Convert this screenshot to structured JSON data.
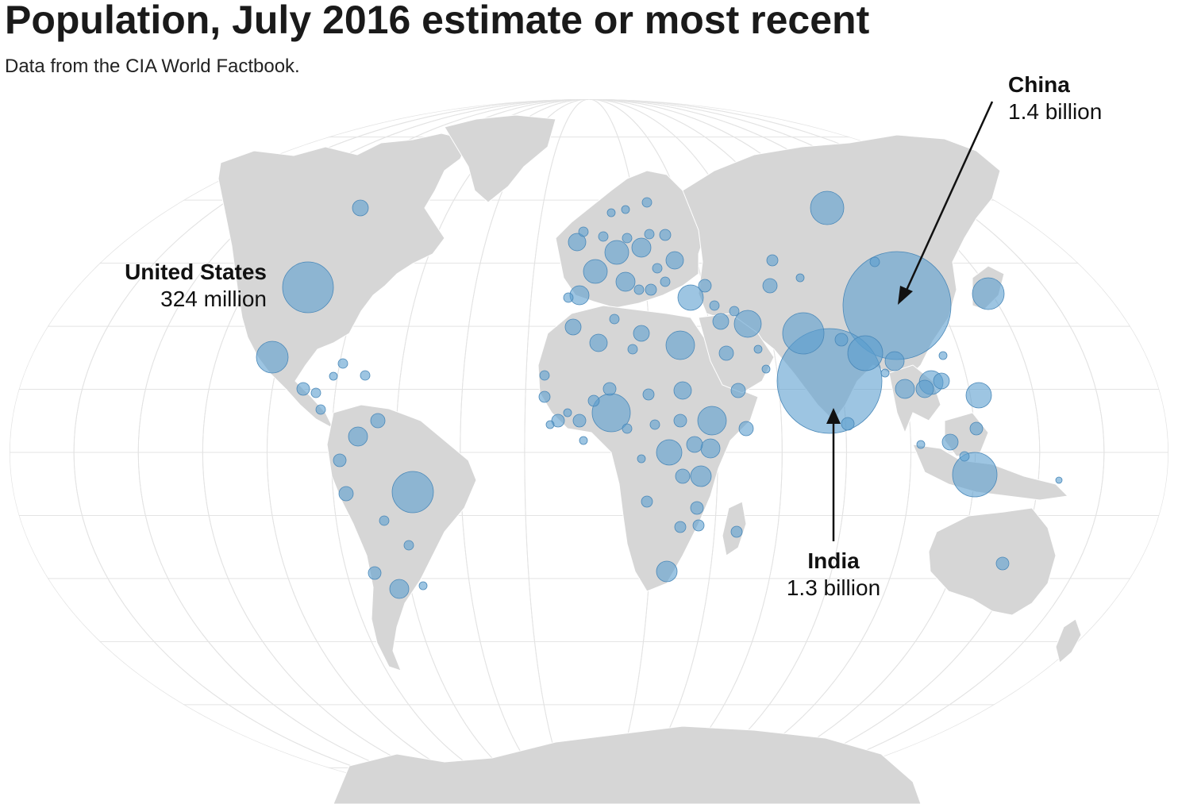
{
  "title": "Population, July 2016 estimate or most recent",
  "subtitle": "Data from the CIA World Factbook.",
  "colors": {
    "ocean": "#ffffff",
    "land": "#d6d6d6",
    "graticule": "#e3e3e3",
    "bubble": "#5b9ecf",
    "bubble_stroke": "#4a88b8",
    "label": "#111111"
  },
  "callouts": [
    {
      "id": "us",
      "name": "United States",
      "value": "324 million"
    },
    {
      "id": "china",
      "name": "China",
      "value": "1.4 billion"
    },
    {
      "id": "india",
      "name": "India",
      "value": "1.3 billion"
    }
  ],
  "chart_data": {
    "type": "map",
    "projection": "world",
    "measure": "population",
    "highlighted": [
      {
        "country": "United States",
        "population": 324000000
      },
      {
        "country": "China",
        "population": 1400000000
      },
      {
        "country": "India",
        "population": 1300000000
      }
    ]
  }
}
